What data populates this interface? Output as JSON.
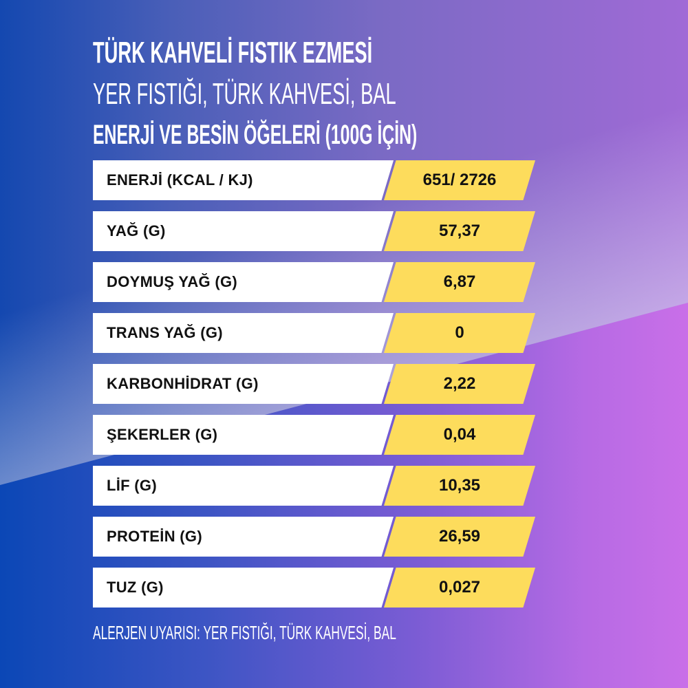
{
  "title": "TÜRK KAHVELİ FISTIK EZMESİ",
  "ingredients": "YER FISTIĞI, TÜRK KAHVESİ, BAL",
  "section_title": "ENERJİ VE BESİN ÖĞELERİ (100G İÇİN)",
  "rows": [
    {
      "label": "ENERJİ (KCAL / KJ)",
      "value": "651/ 2726"
    },
    {
      "label": "YAĞ (G)",
      "value": "57,37"
    },
    {
      "label": "DOYMUŞ YAĞ (G)",
      "value": "6,87"
    },
    {
      "label": "TRANS YAĞ (G)",
      "value": "0"
    },
    {
      "label": "KARBONHİDRAT (G)",
      "value": "2,22"
    },
    {
      "label": "ŞEKERLER (G)",
      "value": "0,04"
    },
    {
      "label": "LİF (G)",
      "value": "10,35"
    },
    {
      "label": "PROTEİN (G)",
      "value": "26,59"
    },
    {
      "label": "TUZ (G)",
      "value": "0,027"
    }
  ],
  "allergen_warning": "ALERJEN UYARISI: YER FISTIĞI, TÜRK KAHVESİ, BAL",
  "colors": {
    "value_bg": "#fddc5c",
    "label_bg": "#ffffff",
    "bg_left": "#0b47b6",
    "bg_right": "#c96fe8"
  }
}
